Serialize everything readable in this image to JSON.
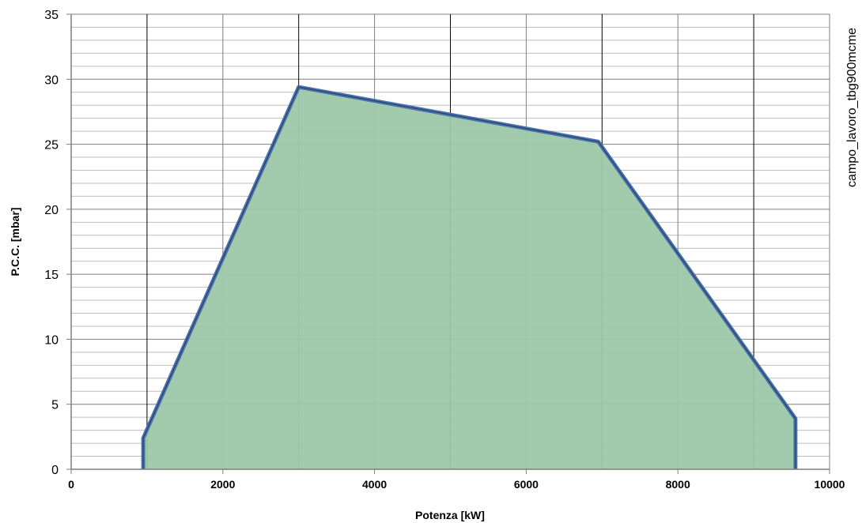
{
  "chart_data": {
    "type": "area",
    "xlabel": "Potenza [kW]",
    "ylabel": "P.C.C. [mbar]",
    "xlim": [
      0,
      10000
    ],
    "ylim": [
      0,
      35
    ],
    "x_ticks": [
      0,
      2000,
      4000,
      6000,
      8000,
      10000
    ],
    "y_ticks": [
      0,
      5,
      10,
      15,
      20,
      25,
      30,
      35
    ],
    "x_tick_labels": [
      "0",
      "2000",
      "4000",
      "6000",
      "8000",
      "10000"
    ],
    "y_tick_labels": [
      "0",
      "5",
      "10",
      "15",
      "20",
      "25",
      "30",
      "35"
    ],
    "grid": true,
    "side_label": "campo_lavoro_tbg900mcme",
    "series": [
      {
        "x": [
          950,
          950,
          3000,
          6950,
          9550,
          9550
        ],
        "y": [
          0,
          2.4,
          29.4,
          25.2,
          3.9,
          0
        ]
      }
    ],
    "colors": {
      "fill": "#9dc7a8",
      "line": "#4a74b0",
      "line_dark": "#2b3f5f",
      "grid_major": "#7f7f7f",
      "grid_minor": "#bfbfbf",
      "grid_strong": "#000000"
    }
  }
}
